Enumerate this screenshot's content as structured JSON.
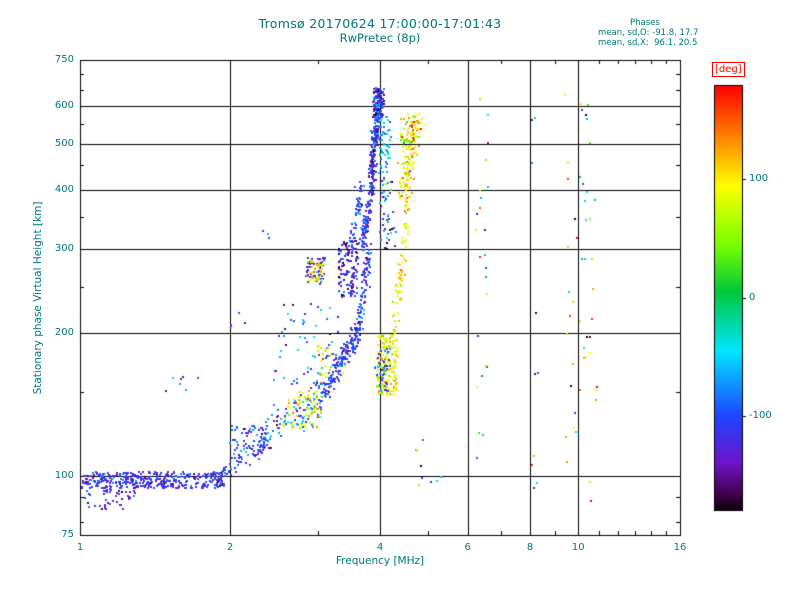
{
  "chart_data": {
    "type": "scatter",
    "title": "Tromsø 20170624 17:00:00-17:01:43",
    "subtitle": "RwPretec (8p)",
    "xlabel": "Frequency [MHz]",
    "ylabel": "Stationary phase Virtual Height [km]",
    "x_scale": "log",
    "x_range": [
      1,
      16
    ],
    "x_ticks": [
      1,
      2,
      4,
      6,
      8,
      10,
      16
    ],
    "x_minor_ticks": [
      3,
      5,
      7,
      9,
      11,
      12,
      13,
      14,
      15
    ],
    "y_scale": "log",
    "y_range": [
      75,
      750
    ],
    "y_ticks": [
      75,
      100,
      200,
      300,
      400,
      500,
      600,
      750
    ],
    "y_minor_ticks": [
      80,
      90,
      150,
      250,
      350,
      450,
      550,
      650,
      700
    ],
    "grid_x": [
      2,
      4,
      6,
      8,
      10
    ],
    "grid_y": [
      100,
      200,
      300,
      400,
      500,
      600
    ],
    "grid_on": true,
    "stats": {
      "header": "Phases",
      "line_o": "mean, sd,O: -91.8, 17.7",
      "line_x": "mean, sd,X:  96.1, 20.5"
    },
    "colorbar": {
      "label": "[deg]",
      "ticks": [
        100,
        0,
        -100
      ],
      "vmin": -180,
      "vmax": 180,
      "position": "right"
    },
    "text_color": "#007878",
    "deg_label_color": "#ff0000",
    "palette_stops": [
      [
        180,
        255,
        0,
        0
      ],
      [
        130,
        255,
        150,
        0
      ],
      [
        95,
        255,
        255,
        0
      ],
      [
        45,
        120,
        255,
        0
      ],
      [
        5,
        0,
        200,
        60
      ],
      [
        -45,
        0,
        230,
        255
      ],
      [
        -100,
        30,
        70,
        255
      ],
      [
        -140,
        110,
        20,
        200
      ],
      [
        -165,
        70,
        0,
        80
      ],
      [
        -180,
        10,
        0,
        10
      ]
    ],
    "clusters": [
      {
        "m": "box",
        "f": [
          1.0,
          1.95
        ],
        "h": [
          94,
          102
        ],
        "n": 380,
        "p": -115,
        "s": 20
      },
      {
        "m": "box",
        "f": [
          1.02,
          1.3
        ],
        "h": [
          85,
          94
        ],
        "n": 45,
        "p": -120,
        "s": 25
      },
      {
        "m": "line",
        "f": [
          1.9,
          2.4
        ],
        "h": [
          100,
          118
        ],
        "n": 70,
        "p": -110,
        "s": 20
      },
      {
        "m": "box",
        "f": [
          2.0,
          2.35
        ],
        "h": [
          108,
          128
        ],
        "n": 45,
        "p": -100,
        "s": 30
      },
      {
        "m": "box",
        "f": [
          1.45,
          1.75
        ],
        "h": [
          148,
          162
        ],
        "n": 7,
        "p": -100,
        "s": 30
      },
      {
        "m": "line",
        "f": [
          2.3,
          3.1
        ],
        "h": [
          120,
          148
        ],
        "n": 110,
        "p": -95,
        "s": 30,
        "hj": 0.05
      },
      {
        "m": "box",
        "f": [
          2.55,
          3.05
        ],
        "h": [
          126,
          152
        ],
        "n": 70,
        "p": 95,
        "s": 35
      },
      {
        "m": "box",
        "f": [
          2.45,
          3.3
        ],
        "h": [
          155,
          230
        ],
        "n": 55,
        "p": -90,
        "s": 50
      },
      {
        "m": "box",
        "f": [
          3.0,
          3.45
        ],
        "h": [
          150,
          190
        ],
        "n": 30,
        "p": 100,
        "s": 30
      },
      {
        "m": "line",
        "f": [
          3.1,
          3.6
        ],
        "h": [
          152,
          200
        ],
        "n": 150,
        "p": -110,
        "s": 20,
        "hj": 0.04
      },
      {
        "m": "box",
        "f": [
          2.84,
          3.1
        ],
        "h": [
          252,
          288
        ],
        "n": 55,
        "p": -120,
        "s": 25
      },
      {
        "m": "box",
        "f": [
          2.86,
          3.08
        ],
        "h": [
          255,
          285
        ],
        "n": 40,
        "p": 100,
        "s": 30
      },
      {
        "m": "box",
        "f": [
          3.3,
          3.62
        ],
        "h": [
          238,
          312
        ],
        "n": 120,
        "p": -125,
        "s": 30
      },
      {
        "m": "line",
        "f": [
          3.5,
          3.68
        ],
        "h": [
          300,
          420
        ],
        "n": 50,
        "p": -110,
        "s": 25
      },
      {
        "m": "line",
        "f": [
          3.62,
          3.8
        ],
        "h": [
          200,
          300
        ],
        "n": 90,
        "p": -110,
        "s": 25
      },
      {
        "m": "line",
        "f": [
          3.68,
          3.88
        ],
        "h": [
          300,
          430
        ],
        "n": 120,
        "p": -115,
        "s": 25
      },
      {
        "m": "line",
        "f": [
          3.85,
          3.98
        ],
        "h": [
          430,
          640
        ],
        "n": 200,
        "p": -120,
        "s": 30
      },
      {
        "m": "box",
        "f": [
          3.88,
          4.08
        ],
        "h": [
          560,
          655
        ],
        "n": 110,
        "p": -115,
        "s": 35
      },
      {
        "m": "box",
        "f": [
          3.98,
          4.2
        ],
        "h": [
          430,
          570
        ],
        "n": 55,
        "p": -55,
        "s": 25
      },
      {
        "m": "box",
        "f": [
          4.0,
          4.3
        ],
        "h": [
          300,
          430
        ],
        "n": 45,
        "p": -80,
        "s": 60
      },
      {
        "m": "box",
        "f": [
          3.95,
          4.35
        ],
        "h": [
          148,
          198
        ],
        "n": 170,
        "p": 95,
        "s": 25
      },
      {
        "m": "box",
        "f": [
          3.9,
          4.2
        ],
        "h": [
          150,
          185
        ],
        "n": 40,
        "p": -100,
        "s": 30
      },
      {
        "m": "line",
        "f": [
          4.3,
          4.55
        ],
        "h": [
          200,
          380
        ],
        "n": 70,
        "p": 100,
        "s": 25
      },
      {
        "m": "line",
        "f": [
          4.45,
          4.72
        ],
        "h": [
          380,
          560
        ],
        "n": 130,
        "p": 100,
        "s": 30,
        "fj": 0.015
      },
      {
        "m": "box",
        "f": [
          4.4,
          4.8
        ],
        "h": [
          480,
          580
        ],
        "n": 40,
        "p": 90,
        "s": 40
      },
      {
        "m": "box",
        "f": [
          6.2,
          6.6
        ],
        "h": [
          95,
          630
        ],
        "n": 24,
        "p": 0,
        "s": 110
      },
      {
        "m": "box",
        "f": [
          8.05,
          8.35
        ],
        "h": [
          90,
          620
        ],
        "n": 10,
        "p": -30,
        "s": 100
      },
      {
        "m": "box",
        "f": [
          9.4,
          10.9
        ],
        "h": [
          88,
          640
        ],
        "n": 48,
        "p": 20,
        "s": 110
      },
      {
        "m": "box",
        "f": [
          2.28,
          2.42
        ],
        "h": [
          312,
          330
        ],
        "n": 3,
        "p": -110,
        "s": 20
      },
      {
        "m": "box",
        "f": [
          2.0,
          2.15
        ],
        "h": [
          205,
          222
        ],
        "n": 4,
        "p": -105,
        "s": 20
      },
      {
        "m": "box",
        "f": [
          5.05,
          5.3
        ],
        "h": [
          94,
          103
        ],
        "n": 3,
        "p": -60,
        "s": 80
      },
      {
        "m": "box",
        "f": [
          4.4,
          5.0
        ],
        "h": [
          92,
          130
        ],
        "n": 6,
        "p": -40,
        "s": 90
      }
    ]
  }
}
